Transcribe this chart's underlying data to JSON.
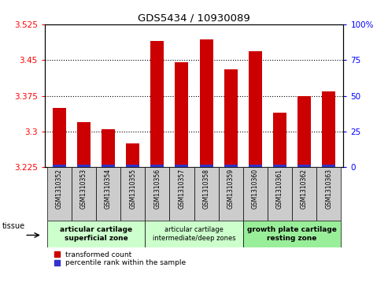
{
  "title": "GDS5434 / 10930089",
  "samples": [
    "GSM1310352",
    "GSM1310353",
    "GSM1310354",
    "GSM1310355",
    "GSM1310356",
    "GSM1310357",
    "GSM1310358",
    "GSM1310359",
    "GSM1310360",
    "GSM1310361",
    "GSM1310362",
    "GSM1310363"
  ],
  "transformed_count": [
    3.35,
    3.32,
    3.305,
    3.275,
    3.49,
    3.445,
    3.493,
    3.43,
    3.468,
    3.34,
    3.375,
    3.385
  ],
  "ylim_left": [
    3.225,
    3.525
  ],
  "ylim_right": [
    0,
    100
  ],
  "yticks_left": [
    3.225,
    3.3,
    3.375,
    3.45,
    3.525
  ],
  "yticks_right": [
    0,
    25,
    50,
    75,
    100
  ],
  "hlines": [
    3.3,
    3.375,
    3.45
  ],
  "bar_color_red": "#cc0000",
  "bar_color_blue": "#3333cc",
  "groups": [
    {
      "label": "articular cartilage\nsuperficial zone",
      "start": 0,
      "end": 3,
      "color": "#ccffcc",
      "font_bold": true
    },
    {
      "label": "articular cartilage\nintermediate/deep zones",
      "start": 4,
      "end": 7,
      "color": "#ccffcc",
      "font_bold": false
    },
    {
      "label": "growth plate cartilage\nresting zone",
      "start": 8,
      "end": 11,
      "color": "#99ee99",
      "font_bold": true
    }
  ],
  "legend_red": "transformed count",
  "legend_blue": "percentile rank within the sample",
  "tissue_label": "tissue",
  "bar_width": 0.55,
  "blue_bar_percentile": 2.0
}
